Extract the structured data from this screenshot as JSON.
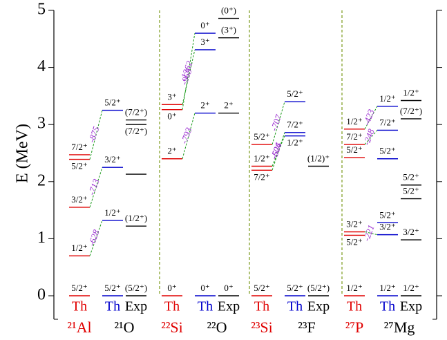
{
  "chart_data": {
    "type": "level-scheme",
    "ylabel": "E (MeV)",
    "ylim": [
      0,
      5
    ],
    "yticks": [
      0,
      1,
      2,
      3,
      4,
      5
    ],
    "divider_color": "#7a9a1a",
    "mirror_line_color": "#1a9a1a",
    "mirror_text_color": "#9b30d0",
    "groups": [
      {
        "nuclei": [
          {
            "name": "²¹Al",
            "color": "#e00000"
          },
          {
            "name": "²¹O",
            "color": "#000000"
          }
        ],
        "columns": [
          {
            "header": "Th",
            "color": "#e00000",
            "levels": [
              {
                "E": 0,
                "label": "5/2⁺"
              },
              {
                "E": 0.7,
                "label": "1/2⁺",
                "shift": -628
              },
              {
                "E": 1.55,
                "label": "3/2⁺",
                "shift": -713
              },
              {
                "E": 2.39,
                "label": "5/2⁺",
                "shift": -875
              },
              {
                "E": 2.47,
                "label": "7/2⁺",
                "shift": -760
              }
            ]
          },
          {
            "header": "Th",
            "color": "#0000cc",
            "levels": [
              {
                "E": 0,
                "label": "5/2⁺"
              },
              {
                "E": 1.32,
                "label": "1/2⁺"
              },
              {
                "E": 2.25,
                "label": "3/2⁺"
              },
              {
                "E": 3.25,
                "label": "5/2⁺"
              }
            ]
          },
          {
            "header": "Exp",
            "color": "#000000",
            "levels": [
              {
                "E": 0,
                "label": "(5/2⁺)"
              },
              {
                "E": 1.22,
                "label": "(1/2⁺)"
              },
              {
                "E": 2.13,
                "label": null
              },
              {
                "E": 3.0,
                "label": "(7/2⁺)"
              },
              {
                "E": 3.08,
                "label": "(7/2⁺)"
              }
            ]
          }
        ]
      },
      {
        "nuclei": [
          {
            "name": "²²Si",
            "color": "#e00000"
          },
          {
            "name": "²²O",
            "color": "#000000"
          }
        ],
        "columns": [
          {
            "header": "Th",
            "color": "#e00000",
            "levels": [
              {
                "E": 0,
                "label": "0⁺"
              },
              {
                "E": 2.4,
                "label": "2⁺",
                "shift": -793
              },
              {
                "E": 3.26,
                "label": "0⁺",
                "shift": -1362
              },
              {
                "E": 3.35,
                "label": "3⁺",
                "shift": -965
              }
            ]
          },
          {
            "header": "Th",
            "color": "#0000cc",
            "levels": [
              {
                "E": 0,
                "label": "0⁺"
              },
              {
                "E": 3.2,
                "label": "2⁺"
              },
              {
                "E": 4.31,
                "label": "3⁺"
              },
              {
                "E": 4.6,
                "label": "0⁺"
              }
            ]
          },
          {
            "header": "Exp",
            "color": "#000000",
            "levels": [
              {
                "E": 0,
                "label": "0⁺"
              },
              {
                "E": 3.2,
                "label": "2⁺"
              },
              {
                "E": 4.52,
                "label": "(3⁺)"
              },
              {
                "E": 4.86,
                "label": "(0⁺)"
              }
            ]
          }
        ]
      },
      {
        "nuclei": [
          {
            "name": "²³Si",
            "color": "#e00000"
          },
          {
            "name": "²³F",
            "color": "#000000"
          }
        ],
        "columns": [
          {
            "header": "Th",
            "color": "#e00000",
            "levels": [
              {
                "E": 0,
                "label": "5/2⁺"
              },
              {
                "E": 2.2,
                "label": "7/2⁺",
                "shift": -504
              },
              {
                "E": 2.27,
                "label": "1/2⁺",
                "shift": -626
              },
              {
                "E": 2.65,
                "label": "5/2⁺",
                "shift": -707
              }
            ]
          },
          {
            "header": "Th",
            "color": "#0000cc",
            "levels": [
              {
                "E": 0,
                "label": "5/2⁺"
              },
              {
                "E": 2.8,
                "label": "1/2⁺"
              },
              {
                "E": 2.86,
                "label": "7/2⁺"
              },
              {
                "E": 3.4,
                "label": "5/2⁺"
              }
            ]
          },
          {
            "header": "Exp",
            "color": "#000000",
            "levels": [
              {
                "E": 0,
                "label": "(5/2⁺)"
              },
              {
                "E": 2.27,
                "label": "(1/2)⁺"
              }
            ]
          }
        ]
      },
      {
        "nuclei": [
          {
            "name": "²⁷P",
            "color": "#e00000"
          },
          {
            "name": "²⁷Mg",
            "color": "#000000"
          }
        ],
        "columns": [
          {
            "header": "Th",
            "color": "#e00000",
            "levels": [
              {
                "E": 0,
                "label": "1/2⁺"
              },
              {
                "E": 1.06,
                "label": "5/2⁺"
              },
              {
                "E": 1.12,
                "label": "3/2⁺",
                "shift": -221
              },
              {
                "E": 2.42,
                "label": "5/2⁺"
              },
              {
                "E": 2.65,
                "label": "7/2⁺",
                "shift": -248
              },
              {
                "E": 2.92,
                "label": "1/2⁺",
                "shift": -423
              }
            ]
          },
          {
            "header": "Th",
            "color": "#0000cc",
            "levels": [
              {
                "E": 0,
                "label": "1/2⁺"
              },
              {
                "E": 1.07,
                "label": "3/2⁺"
              },
              {
                "E": 1.28,
                "label": "5/2⁺"
              },
              {
                "E": 2.4,
                "label": "5/2⁺"
              },
              {
                "E": 2.9,
                "label": "7/2⁺"
              },
              {
                "E": 3.32,
                "label": "1/2⁺"
              }
            ]
          },
          {
            "header": "Exp",
            "color": "#000000",
            "levels": [
              {
                "E": 0,
                "label": "1/2⁺"
              },
              {
                "E": 0.98,
                "label": "3/2⁺"
              },
              {
                "E": 1.7,
                "label": "5/2⁺"
              },
              {
                "E": 1.94,
                "label": "5/2⁺"
              },
              {
                "E": 3.1,
                "label": "(7/2⁺)"
              },
              {
                "E": 3.42,
                "label": "1/2⁺"
              }
            ]
          }
        ]
      }
    ]
  }
}
